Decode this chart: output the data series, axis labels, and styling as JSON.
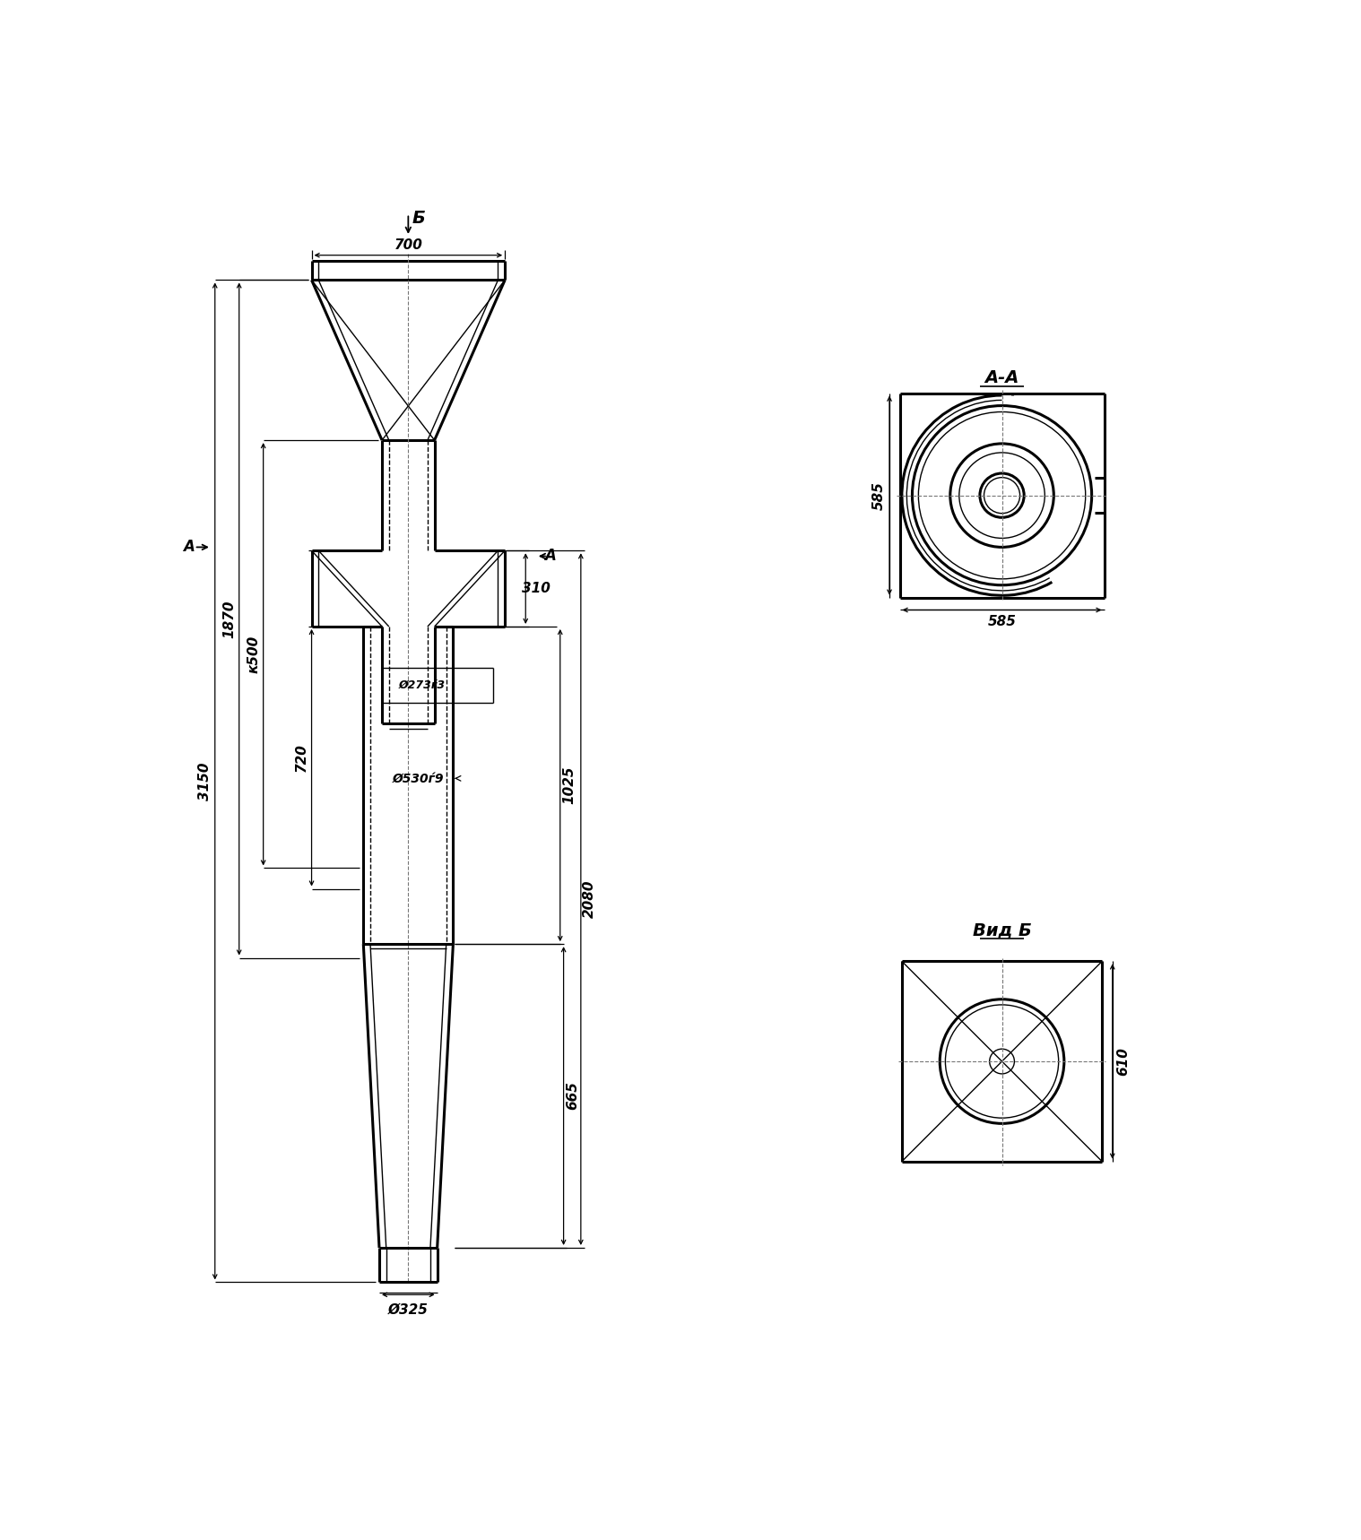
{
  "bg_color": "#ffffff",
  "line_color": "#000000",
  "labels": {
    "B_arrow": "Б",
    "AA_section": "А-А",
    "vid_B": "Вид Б",
    "dim_700": "700",
    "dim_1870": "1870",
    "dim_1500": "к500",
    "dim_310": "310",
    "dim_720": "720",
    "dim_3150": "3150",
    "dim_273x3": "Ø273ѓ3",
    "dim_530x9": "Ø530ѓ9",
    "dim_1025": "1025",
    "dim_2080": "2080",
    "dim_665": "665",
    "dim_325": "Ø325",
    "dim_585h": "585",
    "dim_585w": "585",
    "dim_610": "610",
    "A_label": "А"
  }
}
